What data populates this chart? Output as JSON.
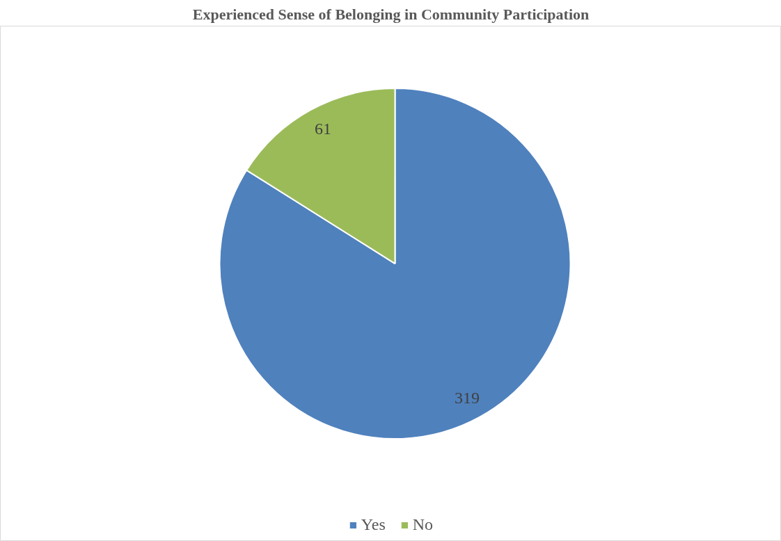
{
  "chart_data": {
    "type": "pie",
    "title": "Experienced Sense of Belonging in Community Participation",
    "categories": [
      "Yes",
      "No"
    ],
    "values": [
      319,
      61
    ],
    "colors": [
      "#4f81bd",
      "#9bbb59"
    ],
    "data_labels": true,
    "legend": "bottom"
  }
}
